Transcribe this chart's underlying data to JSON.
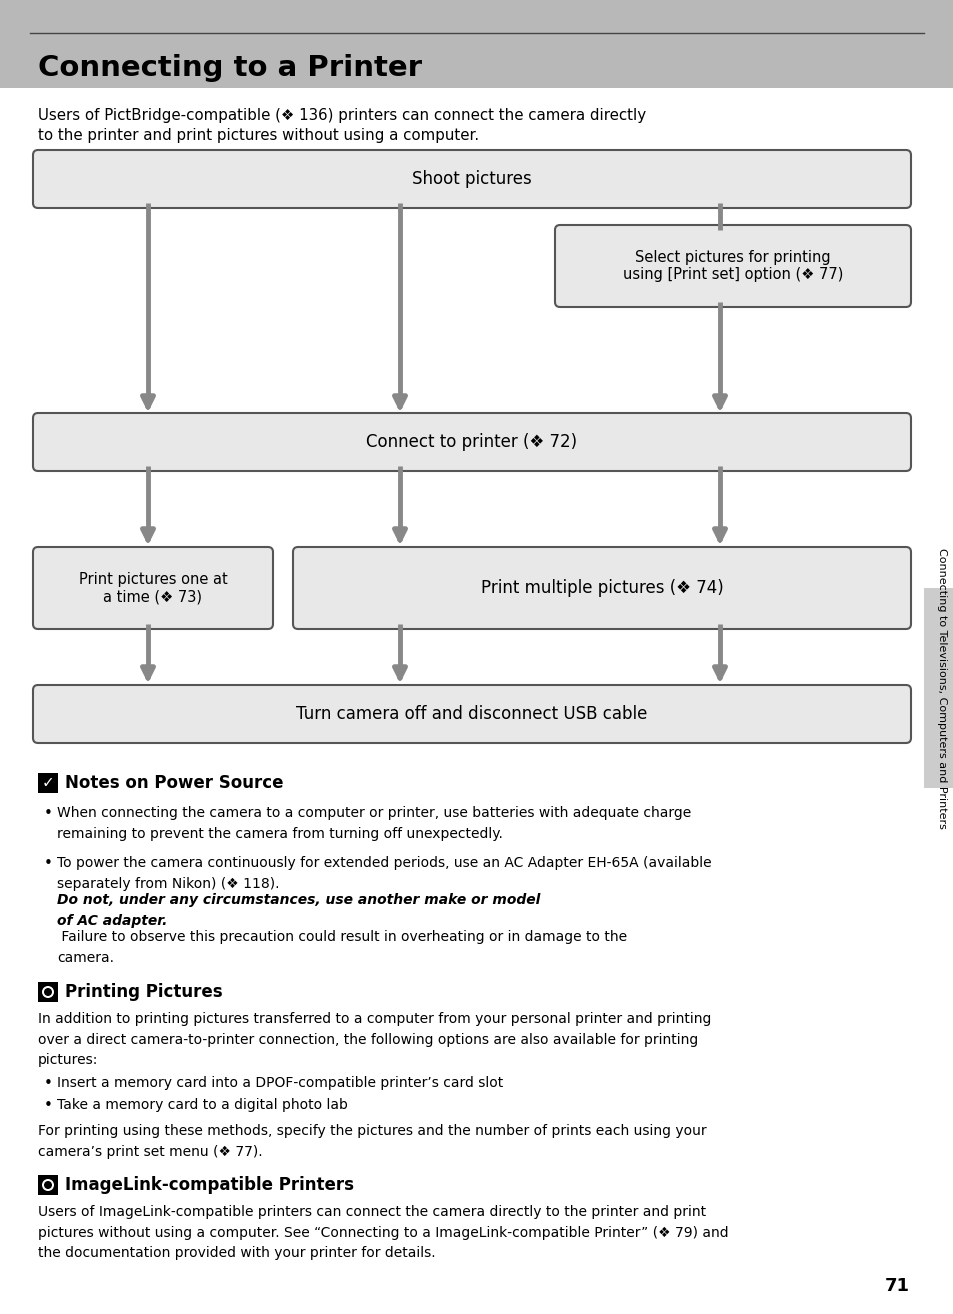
{
  "title": "Connecting to a Printer",
  "page_number": "71",
  "header_bg": "#b8b8b8",
  "box_bg": "#e8e8e8",
  "box_edge": "#555555",
  "arrow_color": "#888888",
  "sidebar_text": "Connecting to Televisions, Computers and Printers",
  "sidebar_tab_color": "#cccccc",
  "intro_text1": "Users of PictBridge-compatible (❖ 136) printers can connect the camera directly",
  "intro_text2": "to the printer and print pictures without using a computer.",
  "box1_text": "Shoot pictures",
  "box2_text": "Select pictures for printing\nusing [Print set] option (❖ 77)",
  "box3_text": "Connect to printer (❖ 72)",
  "box4_text": "Print pictures one at\na time (❖ 73)",
  "box5_text": "Print multiple pictures (❖ 74)",
  "box6_text": "Turn camera off and disconnect USB cable",
  "notes_title": "Notes on Power Source",
  "notes_b1": "When connecting the camera to a computer or printer, use batteries with adequate charge\nremaining to prevent the camera from turning off unexpectedly.",
  "notes_b2a": "To power the camera continuously for extended periods, use an AC Adapter EH-65A (available\nseparately from Nikon) (❖ 118). ",
  "notes_b2b": "Do not, under any circumstances, use another make or model\nof AC adapter.",
  "notes_b2c": " Failure to observe this precaution could result in overheating or in damage to the\ncamera.",
  "print_title": "Printing Pictures",
  "print_intro": "In addition to printing pictures transferred to a computer from your personal printer and printing\nover a direct camera-to-printer connection, the following options are also available for printing\npictures:",
  "print_b1": "Insert a memory card into a DPOF-compatible printer’s card slot",
  "print_b2": "Take a memory card to a digital photo lab",
  "print_footer": "For printing using these methods, specify the pictures and the number of prints each using your\ncamera’s print set menu (❖ 77).",
  "imglink_title": "ImageLink-compatible Printers",
  "imglink_text": "Users of ImageLink-compatible printers can connect the camera directly to the printer and print\npictures without using a computer. See “Connecting to a ImageLink-compatible Printer” (❖ 79) and\nthe documentation provided with your printer for details."
}
